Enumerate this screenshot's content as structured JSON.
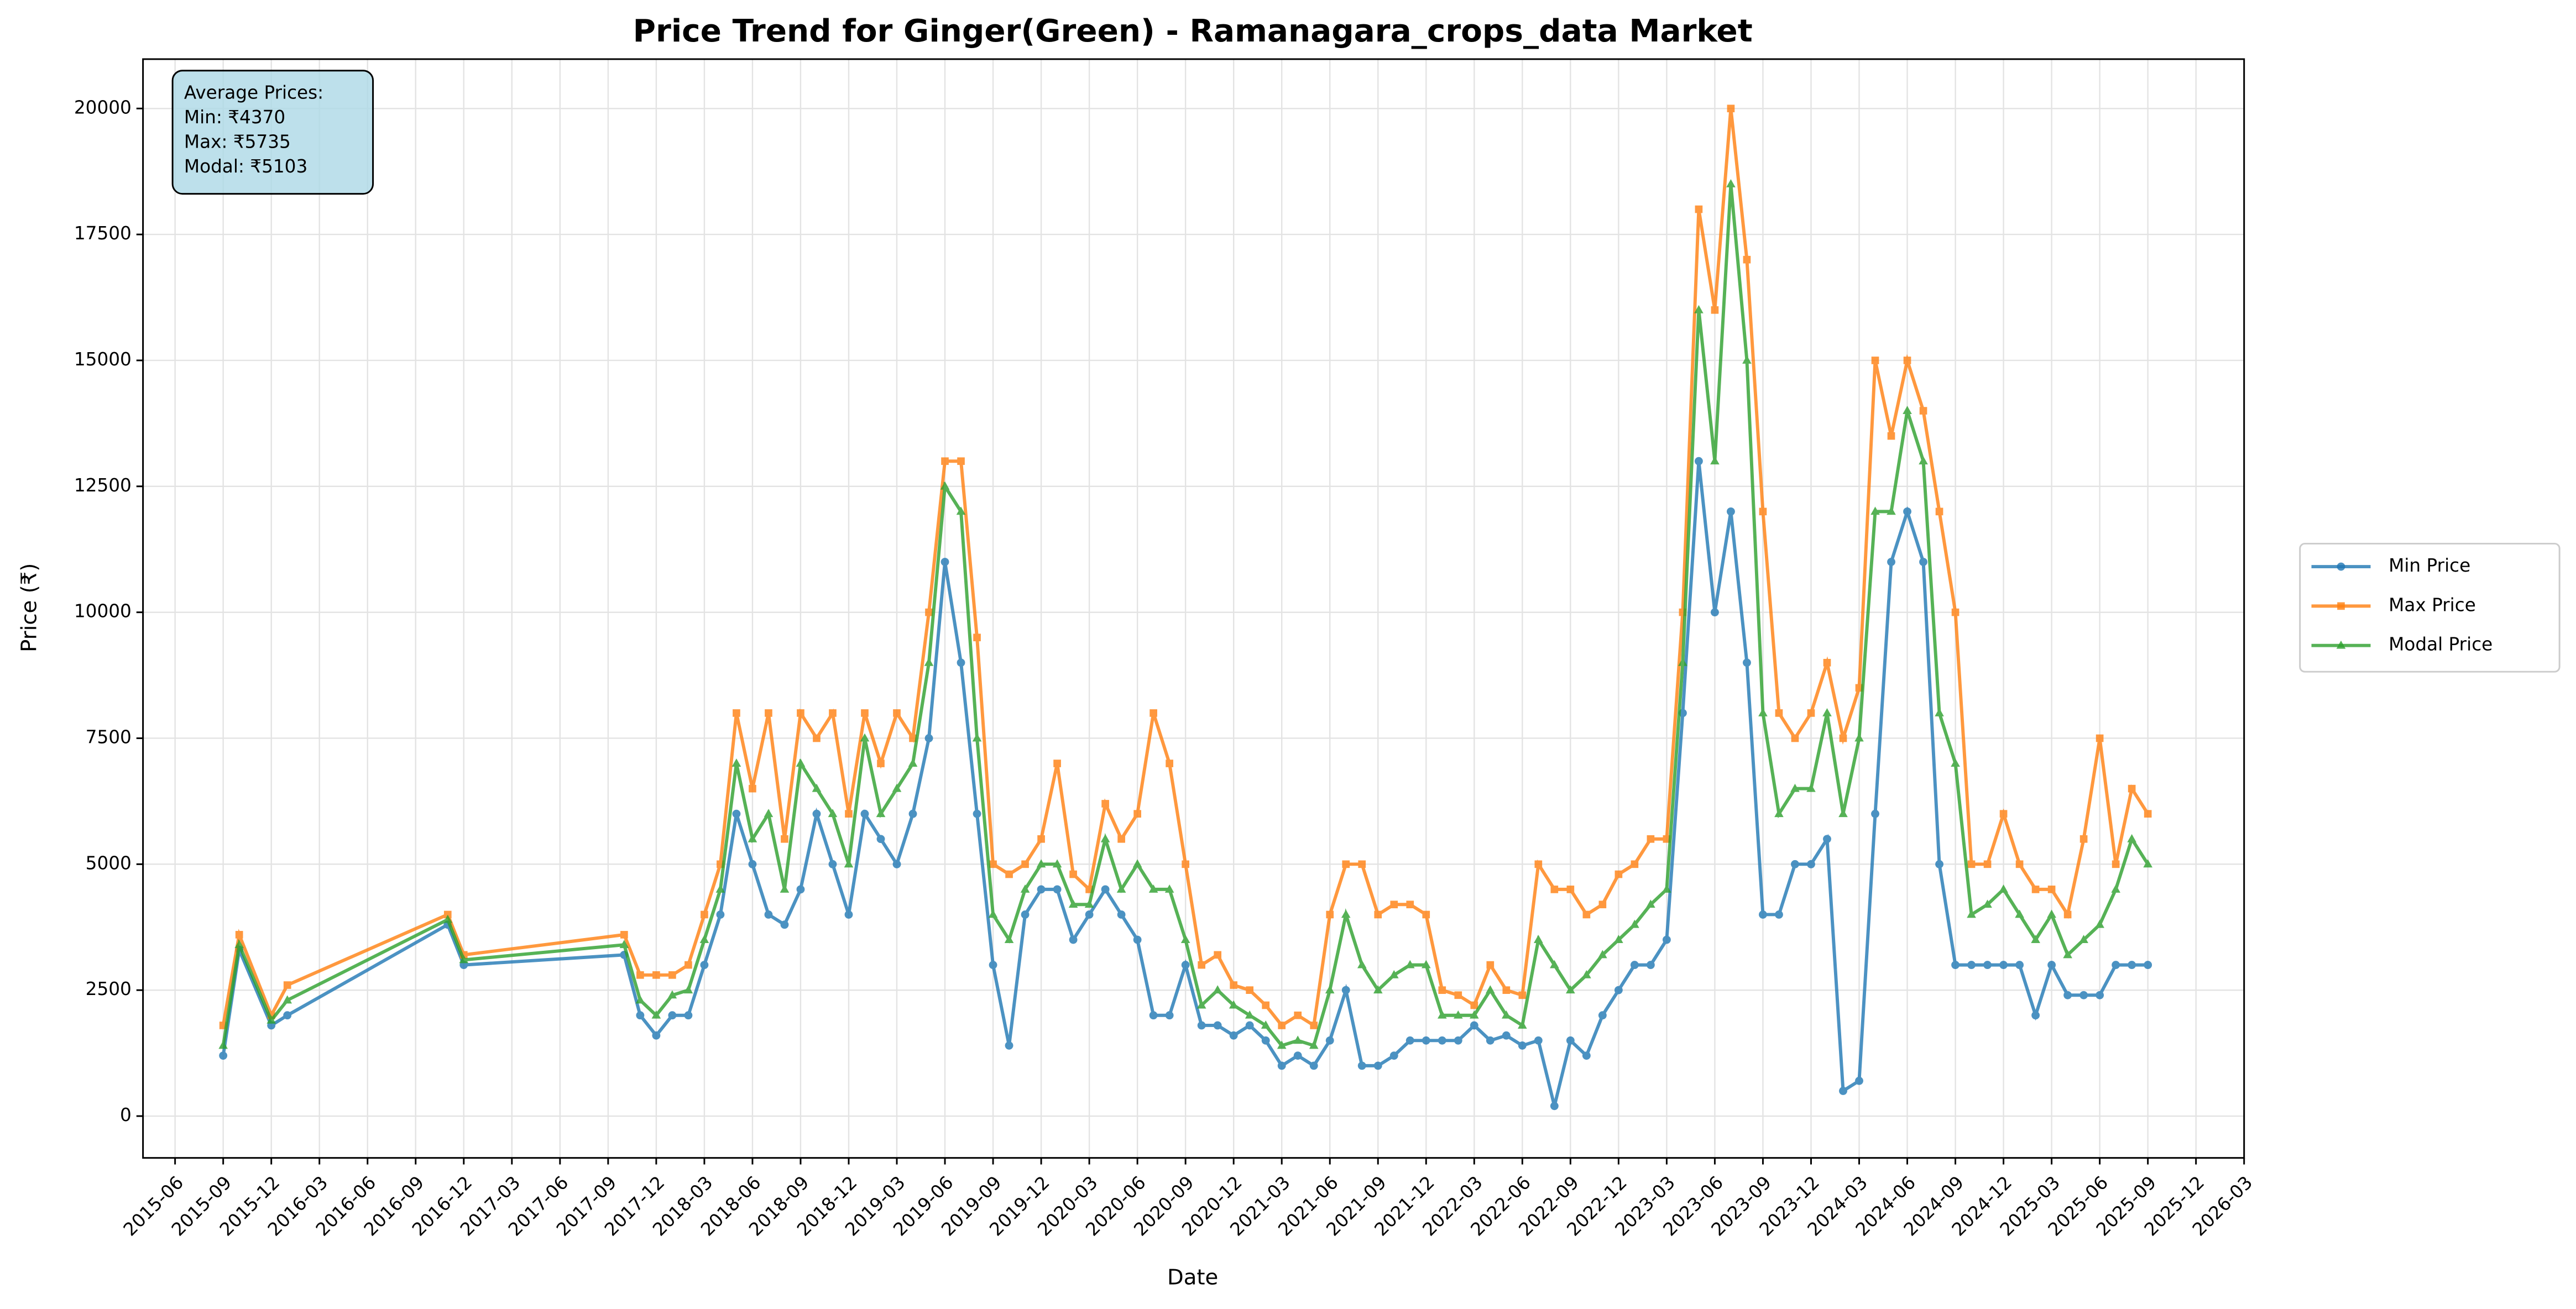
{
  "chart_data": {
    "type": "line",
    "title": "Price Trend for Ginger(Green) - Ramanagara_crops_data Market",
    "x_label": "Date",
    "y_label": "Price (₹)",
    "annotation": [
      "Average Prices:",
      "Min: ₹4370",
      "Max: ₹5735",
      "Modal: ₹5103"
    ],
    "legend": "center right outside",
    "grid": true,
    "x": [
      "2015-09",
      "2015-10",
      "2015-12",
      "2016-01",
      "2016-11",
      "2016-12",
      "2017-10",
      "2017-11",
      "2017-12",
      "2018-01",
      "2018-02",
      "2018-03",
      "2018-04",
      "2018-05",
      "2018-06",
      "2018-07",
      "2018-08",
      "2018-09",
      "2018-10",
      "2018-11",
      "2018-12",
      "2019-01",
      "2019-02",
      "2019-03",
      "2019-04",
      "2019-05",
      "2019-06",
      "2019-07",
      "2019-08",
      "2019-09",
      "2019-10",
      "2019-11",
      "2019-12",
      "2020-01",
      "2020-02",
      "2020-03",
      "2020-04",
      "2020-05",
      "2020-06",
      "2020-07",
      "2020-08",
      "2020-09",
      "2020-10",
      "2020-11",
      "2020-12",
      "2021-01",
      "2021-02",
      "2021-03",
      "2021-04",
      "2021-05",
      "2021-06",
      "2021-07",
      "2021-08",
      "2021-09",
      "2021-10",
      "2021-11",
      "2021-12",
      "2022-01",
      "2022-02",
      "2022-03",
      "2022-04",
      "2022-05",
      "2022-06",
      "2022-07",
      "2022-08",
      "2022-09",
      "2022-10",
      "2022-11",
      "2022-12",
      "2023-01",
      "2023-02",
      "2023-03",
      "2023-04",
      "2023-05",
      "2023-06",
      "2023-07",
      "2023-08",
      "2023-09",
      "2023-10",
      "2023-11",
      "2023-12",
      "2024-01",
      "2024-02",
      "2024-03",
      "2024-04",
      "2024-05",
      "2024-06",
      "2024-07",
      "2024-08",
      "2024-09",
      "2024-10",
      "2024-11",
      "2024-12",
      "2025-01",
      "2025-02",
      "2025-03",
      "2025-04",
      "2025-05",
      "2025-06",
      "2025-07",
      "2025-08",
      "2025-09"
    ],
    "series": [
      {
        "name": "Min Price",
        "color": "#1f77b4",
        "marker": "circle",
        "values": [
          1200,
          3300,
          1800,
          2000,
          3800,
          3000,
          3200,
          2000,
          1600,
          2000,
          2000,
          3000,
          4000,
          6000,
          5000,
          4000,
          3800,
          4500,
          6000,
          5000,
          4000,
          6000,
          5500,
          5000,
          6000,
          7500,
          11000,
          9000,
          6000,
          3000,
          1400,
          4000,
          4500,
          4500,
          3500,
          4000,
          4500,
          4000,
          3500,
          2000,
          2000,
          3000,
          1800,
          1800,
          1600,
          1800,
          1500,
          1000,
          1200,
          1000,
          1500,
          2500,
          1000,
          1000,
          1200,
          1500,
          1500,
          1500,
          1500,
          1800,
          1500,
          1600,
          1400,
          1500,
          200,
          1500,
          1200,
          2000,
          2500,
          3000,
          3000,
          3500,
          8000,
          13000,
          10000,
          12000,
          9000,
          4000,
          4000,
          5000,
          5000,
          5500,
          500,
          700,
          6000,
          11000,
          12000,
          11000,
          5000,
          3000,
          3000,
          3000,
          3000,
          3000,
          2000,
          3000,
          2400,
          2400,
          2400,
          3000,
          3000,
          3000
        ]
      },
      {
        "name": "Max Price",
        "color": "#ff7f0e",
        "marker": "square",
        "values": [
          1800,
          3600,
          2000,
          2600,
          4000,
          3200,
          3600,
          2800,
          2800,
          2800,
          3000,
          4000,
          5000,
          8000,
          6500,
          8000,
          5500,
          8000,
          7500,
          8000,
          6000,
          8000,
          7000,
          8000,
          7500,
          10000,
          13000,
          13000,
          9500,
          5000,
          4800,
          5000,
          5500,
          7000,
          4800,
          4500,
          6200,
          5500,
          6000,
          8000,
          7000,
          5000,
          3000,
          3200,
          2600,
          2500,
          2200,
          1800,
          2000,
          1800,
          4000,
          5000,
          5000,
          4000,
          4200,
          4200,
          4000,
          2500,
          2400,
          2200,
          3000,
          2500,
          2400,
          5000,
          4500,
          4500,
          4000,
          4200,
          4800,
          5000,
          5500,
          5500,
          10000,
          18000,
          16000,
          20000,
          17000,
          12000,
          8000,
          7500,
          8000,
          9000,
          7500,
          8500,
          15000,
          13500,
          15000,
          14000,
          12000,
          10000,
          5000,
          5000,
          6000,
          5000,
          4500,
          4500,
          4000,
          5500,
          7500,
          5000,
          6500,
          6000
        ]
      },
      {
        "name": "Modal Price",
        "color": "#2ca02c",
        "marker": "triangle",
        "values": [
          1400,
          3400,
          1900,
          2300,
          3900,
          3100,
          3400,
          2300,
          2000,
          2400,
          2500,
          3500,
          4500,
          7000,
          5500,
          6000,
          4500,
          7000,
          6500,
          6000,
          5000,
          7500,
          6000,
          6500,
          7000,
          9000,
          12500,
          12000,
          7500,
          4000,
          3500,
          4500,
          5000,
          5000,
          4200,
          4200,
          5500,
          4500,
          5000,
          4500,
          4500,
          3500,
          2200,
          2500,
          2200,
          2000,
          1800,
          1400,
          1500,
          1400,
          2500,
          4000,
          3000,
          2500,
          2800,
          3000,
          3000,
          2000,
          2000,
          2000,
          2500,
          2000,
          1800,
          3500,
          3000,
          2500,
          2800,
          3200,
          3500,
          3800,
          4200,
          4500,
          9000,
          16000,
          13000,
          18500,
          15000,
          8000,
          6000,
          6500,
          6500,
          8000,
          6000,
          7500,
          12000,
          12000,
          14000,
          13000,
          8000,
          7000,
          4000,
          4200,
          4500,
          4000,
          3500,
          4000,
          3200,
          3500,
          3800,
          4500,
          5500,
          5000
        ]
      }
    ],
    "xlim": [
      "2015-04",
      "2026-03"
    ],
    "xticks": [
      "2015-06",
      "2015-09",
      "2015-12",
      "2016-03",
      "2016-06",
      "2016-09",
      "2016-12",
      "2017-03",
      "2017-06",
      "2017-09",
      "2017-12",
      "2018-03",
      "2018-06",
      "2018-09",
      "2018-12",
      "2019-03",
      "2019-06",
      "2019-09",
      "2019-12",
      "2020-03",
      "2020-06",
      "2020-09",
      "2020-12",
      "2021-03",
      "2021-06",
      "2021-09",
      "2021-12",
      "2022-03",
      "2022-06",
      "2022-09",
      "2022-12",
      "2023-03",
      "2023-06",
      "2023-09",
      "2023-12",
      "2024-03",
      "2024-06",
      "2024-09",
      "2024-12",
      "2025-03",
      "2025-06",
      "2025-09",
      "2025-12",
      "2026-03"
    ],
    "ylim": [
      -830,
      20980
    ],
    "yticks": [
      0,
      2500,
      5000,
      7500,
      10000,
      12500,
      15000,
      17500,
      20000
    ]
  }
}
